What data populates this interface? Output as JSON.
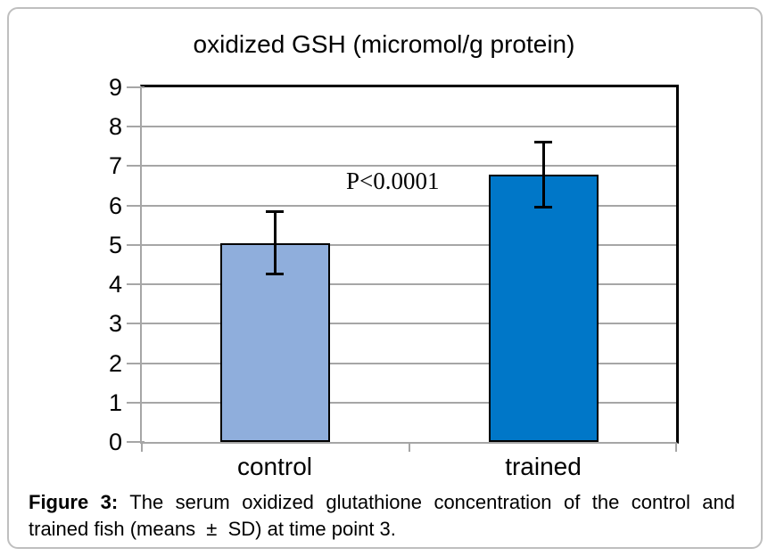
{
  "chart_data": {
    "type": "bar",
    "title": "oxidized GSH (micromol/g protein)",
    "categories": [
      "control",
      "trained"
    ],
    "values": [
      5.05,
      6.79
    ],
    "error_sd": [
      0.79,
      0.83
    ],
    "ylabel": "",
    "xlabel": "",
    "ylim": [
      0,
      9
    ],
    "ytick_step": 1,
    "yticks": [
      0,
      1,
      2,
      3,
      4,
      5,
      6,
      7,
      8,
      9
    ],
    "grid": true,
    "legend": "none",
    "annotation": {
      "text": "P<0.0001"
    },
    "bar_colors": [
      "#8FAEDC",
      "#0077C8"
    ],
    "bar_border_color": "#000000",
    "gridline_color": "#A6A6A6",
    "axis_color": "#A6A6A6",
    "plot_border_color": "#000000"
  },
  "caption": {
    "label": "Figure 3:",
    "line1_rest": "The serum oxidized glutathione concentration of the control and",
    "line2": "trained fish (means  ±  SD) at time point 3."
  },
  "frame_color": "#BFBFBF"
}
